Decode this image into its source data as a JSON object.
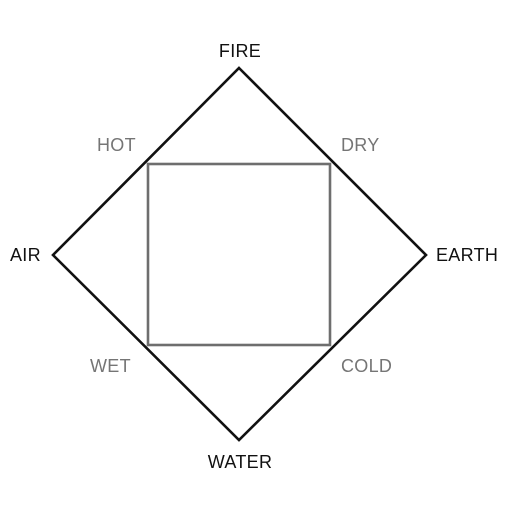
{
  "elements": {
    "top": "FIRE",
    "bottom": "WATER",
    "left": "AIR",
    "right": "EARTH"
  },
  "qualities": {
    "top_left": "HOT",
    "top_right": "DRY",
    "bottom_left": "WET",
    "bottom_right": "COLD"
  },
  "colors": {
    "diamond": "#111111",
    "square": "#6e6e6e",
    "element_text": "#111111",
    "quality_text": "#757575"
  }
}
